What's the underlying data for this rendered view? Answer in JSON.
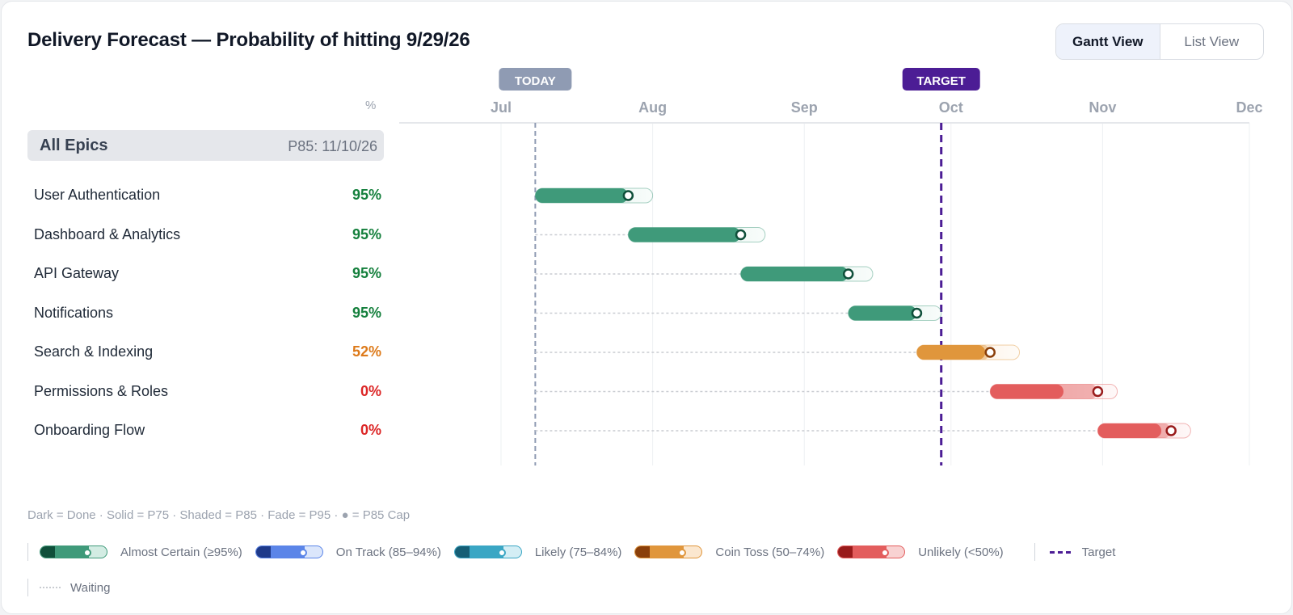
{
  "title": "Delivery Forecast — Probability of hitting 9/29/26",
  "view_toggle": {
    "gantt": "Gantt View",
    "list": "List View"
  },
  "pct_header": "%",
  "summary": {
    "label": "All Epics",
    "p85": "P85: 11/10/26"
  },
  "markers": {
    "today_label": "TODAY",
    "target_label": "TARGET"
  },
  "colors": {
    "almost_certain": [
      "#0f4f3a",
      "#3f9a7a",
      "#d3ece3"
    ],
    "on_track": [
      "#1e3a8a",
      "#5b85e8",
      "#dbe6fb"
    ],
    "likely": [
      "#155e75",
      "#3aa6c4",
      "#d4eef5"
    ],
    "coin_toss": [
      "#8a3f0a",
      "#e0963c",
      "#fbe7cf"
    ],
    "unlikely": [
      "#991b1b",
      "#e35d5d",
      "#f8d2d2"
    ],
    "target": "#4c1d95",
    "today": "#8f9bb3"
  },
  "chart_data": {
    "type": "gantt",
    "x_axis": {
      "ticks": [
        "Jul",
        "Aug",
        "Sep",
        "Oct",
        "Nov",
        "Dec"
      ],
      "range": [
        "2026-07-01",
        "2026-12-01"
      ]
    },
    "today": "2026-07-08",
    "target": "2026-09-29",
    "series": [
      {
        "name": "User Authentication",
        "probability": "95%",
        "status": "almost_certain",
        "start": "2026-07-08",
        "p75": "2026-07-27",
        "p85": "2026-07-27",
        "p95": "2026-08-01"
      },
      {
        "name": "Dashboard & Analytics",
        "probability": "95%",
        "status": "almost_certain",
        "start": "2026-07-27",
        "p75": "2026-08-19",
        "p85": "2026-08-19",
        "p95": "2026-08-24"
      },
      {
        "name": "API Gateway",
        "probability": "95%",
        "status": "almost_certain",
        "start": "2026-08-19",
        "p75": "2026-09-10",
        "p85": "2026-09-10",
        "p95": "2026-09-15"
      },
      {
        "name": "Notifications",
        "probability": "95%",
        "status": "almost_certain",
        "start": "2026-09-10",
        "p75": "2026-09-24",
        "p85": "2026-09-24",
        "p95": "2026-09-29"
      },
      {
        "name": "Search & Indexing",
        "probability": "52%",
        "status": "coin_toss",
        "start": "2026-09-24",
        "p75": "2026-10-08",
        "p85": "2026-10-09",
        "p95": "2026-10-15"
      },
      {
        "name": "Permissions & Roles",
        "probability": "0%",
        "status": "unlikely",
        "start": "2026-10-09",
        "p75": "2026-10-24",
        "p85": "2026-10-31",
        "p95": "2026-11-04"
      },
      {
        "name": "Onboarding Flow",
        "probability": "0%",
        "status": "unlikely",
        "start": "2026-10-31",
        "p75": "2026-11-13",
        "p85": "2026-11-15",
        "p95": "2026-11-19"
      }
    ]
  },
  "footnote": "Dark = Done · Solid = P75 · Shaded = P85 · Fade = P95 · ● = P85 Cap",
  "legend": {
    "almost_certain": "Almost Certain (≥95%)",
    "on_track": "On Track (85–94%)",
    "likely": "Likely (75–84%)",
    "coin_toss": "Coin Toss (50–74%)",
    "unlikely": "Unlikely (<50%)",
    "target": "Target",
    "waiting": "Waiting"
  }
}
